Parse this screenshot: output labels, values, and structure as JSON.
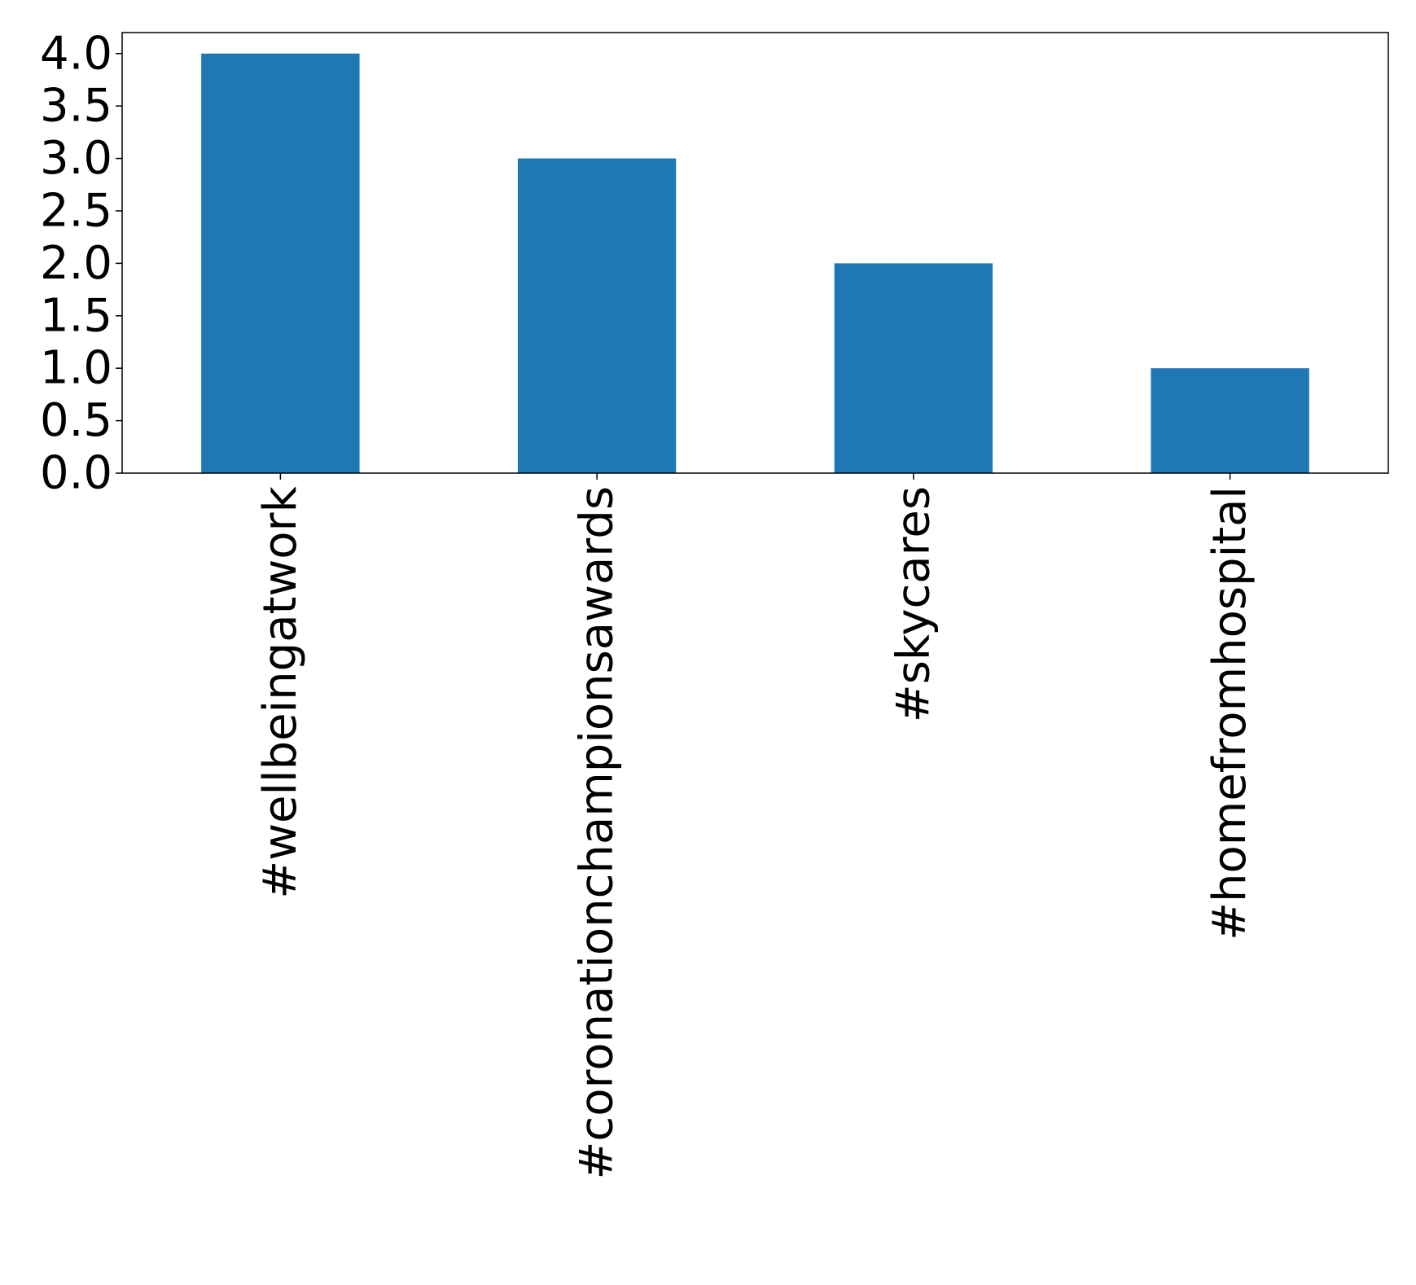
{
  "chart_data": {
    "type": "bar",
    "title": "",
    "xlabel": "",
    "ylabel": "",
    "categories": [
      "#wellbeingatwork",
      "#coronationchampionsawards",
      "#skycares",
      "#homefromhospital"
    ],
    "values": [
      4.0,
      3.0,
      2.0,
      1.0
    ],
    "ylim": [
      0,
      4.2
    ],
    "yticks": [
      "0.0",
      "0.5",
      "1.0",
      "1.5",
      "2.0",
      "2.5",
      "3.0",
      "3.5",
      "4.0"
    ],
    "bar_color": "#1f77b4",
    "grid": false,
    "legend": "none"
  }
}
